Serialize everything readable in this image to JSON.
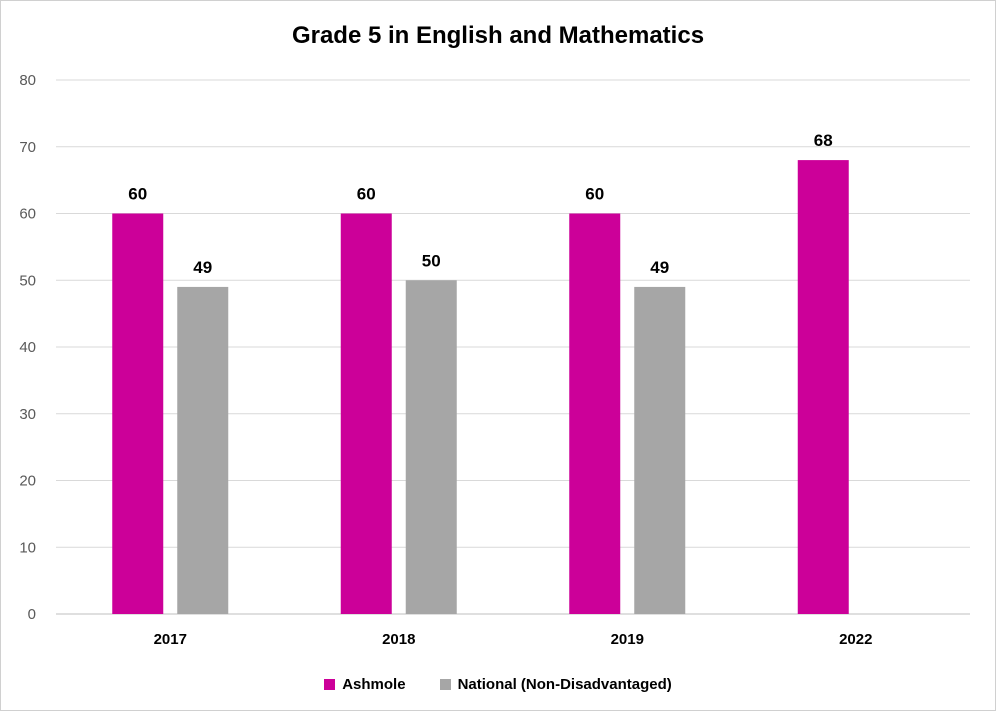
{
  "chart_data": {
    "type": "bar",
    "title": "Grade 5 in English and Mathematics",
    "categories": [
      "2017",
      "2018",
      "2019",
      "2022"
    ],
    "series": [
      {
        "name": "Ashmole",
        "color": "#cc0099",
        "values": [
          60,
          60,
          60,
          68
        ]
      },
      {
        "name": "National (Non-Disadvantaged)",
        "color": "#a6a6a6",
        "values": [
          49,
          50,
          49,
          null
        ]
      }
    ],
    "ylim": [
      0,
      80
    ],
    "yticks": [
      0,
      10,
      20,
      30,
      40,
      50,
      60,
      70,
      80
    ],
    "grid": true,
    "legend": "bottom-center",
    "data_labels": true
  }
}
